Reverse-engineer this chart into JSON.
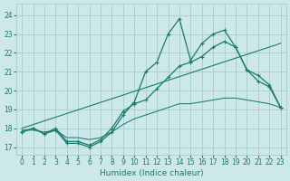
{
  "xlabel": "Humidex (Indice chaleur)",
  "bg_color": "#cce8e8",
  "grid_color": "#aacccc",
  "line_color": "#1a7a6e",
  "xlim": [
    -0.5,
    23.5
  ],
  "ylim": [
    16.6,
    24.6
  ],
  "xticks": [
    0,
    1,
    2,
    3,
    4,
    5,
    6,
    7,
    8,
    9,
    10,
    11,
    12,
    13,
    14,
    15,
    16,
    17,
    18,
    19,
    20,
    21,
    22,
    23
  ],
  "yticks": [
    17,
    18,
    19,
    20,
    21,
    22,
    23,
    24
  ],
  "line1_x": [
    0,
    1,
    2,
    3,
    4,
    5,
    6,
    7,
    8,
    9,
    10,
    11,
    12,
    13,
    14,
    15,
    16,
    17,
    18,
    19,
    20,
    21,
    22,
    23
  ],
  "line1_y": [
    17.8,
    18.0,
    17.7,
    17.9,
    17.2,
    17.2,
    17.0,
    17.3,
    17.8,
    18.7,
    19.4,
    21.0,
    21.5,
    23.0,
    23.8,
    21.6,
    22.5,
    23.0,
    23.2,
    22.3,
    21.1,
    20.5,
    20.2,
    19.1
  ],
  "line2_x": [
    0,
    1,
    2,
    3,
    4,
    5,
    6,
    7,
    8,
    9,
    10,
    11,
    12,
    13,
    14,
    15,
    16,
    17,
    18,
    19,
    20,
    21,
    22,
    23
  ],
  "line2_y": [
    17.8,
    18.0,
    17.7,
    18.0,
    17.3,
    17.3,
    17.1,
    17.4,
    18.0,
    18.9,
    19.3,
    19.5,
    20.1,
    20.7,
    21.3,
    21.5,
    21.8,
    22.3,
    22.6,
    22.3,
    21.1,
    20.8,
    20.3,
    19.1
  ],
  "line3_x": [
    0,
    23
  ],
  "line3_y": [
    18.0,
    22.5
  ],
  "line4_x": [
    0,
    1,
    2,
    3,
    4,
    5,
    6,
    7,
    8,
    9,
    10,
    11,
    12,
    13,
    14,
    15,
    16,
    17,
    18,
    19,
    20,
    21,
    22,
    23
  ],
  "line4_y": [
    17.9,
    17.9,
    17.8,
    17.9,
    17.5,
    17.5,
    17.4,
    17.5,
    17.8,
    18.2,
    18.5,
    18.7,
    18.9,
    19.1,
    19.3,
    19.3,
    19.4,
    19.5,
    19.6,
    19.6,
    19.5,
    19.4,
    19.3,
    19.1
  ]
}
